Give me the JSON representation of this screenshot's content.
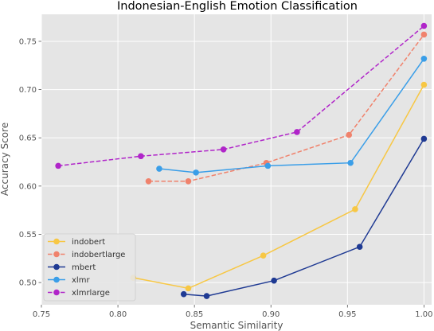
{
  "chart_data": {
    "type": "line",
    "title": "Indonesian-English Emotion Classification",
    "xlabel": "Semantic Similarity",
    "ylabel": "Accuracy Score",
    "xlim": [
      0.75,
      1.005
    ],
    "ylim": [
      0.477,
      0.778
    ],
    "xticks": [
      "0.75",
      "0.80",
      "0.85",
      "0.90",
      "0.95",
      "1.00"
    ],
    "yticks": [
      "0.50",
      "0.55",
      "0.60",
      "0.65",
      "0.70",
      "0.75"
    ],
    "grid": true,
    "background": "#e5e5e5",
    "legend_position": "lower-left",
    "series": [
      {
        "name": "indobert",
        "color": "#f7c744",
        "linestyle": "solid",
        "points": [
          [
            0.81,
            0.505
          ],
          [
            0.846,
            0.494
          ],
          [
            0.895,
            0.528
          ],
          [
            0.955,
            0.576
          ],
          [
            1.0,
            0.705
          ]
        ]
      },
      {
        "name": "indobertlarge",
        "color": "#f0826c",
        "linestyle": "dashed",
        "points": [
          [
            0.82,
            0.605
          ],
          [
            0.846,
            0.605
          ],
          [
            0.897,
            0.624
          ],
          [
            0.951,
            0.653
          ],
          [
            1.0,
            0.757
          ]
        ]
      },
      {
        "name": "mbert",
        "color": "#1f3a93",
        "linestyle": "solid",
        "points": [
          [
            0.843,
            0.488
          ],
          [
            0.858,
            0.486
          ],
          [
            0.902,
            0.502
          ],
          [
            0.958,
            0.537
          ],
          [
            1.0,
            0.649
          ]
        ]
      },
      {
        "name": "xlmr",
        "color": "#3a9ee8",
        "linestyle": "solid",
        "points": [
          [
            0.827,
            0.618
          ],
          [
            0.851,
            0.614
          ],
          [
            0.898,
            0.621
          ],
          [
            0.952,
            0.624
          ],
          [
            1.0,
            0.732
          ]
        ]
      },
      {
        "name": "xlmrlarge",
        "color": "#b025c9",
        "linestyle": "dashed",
        "points": [
          [
            0.761,
            0.621
          ],
          [
            0.815,
            0.631
          ],
          [
            0.869,
            0.638
          ],
          [
            0.917,
            0.656
          ],
          [
            1.0,
            0.766
          ]
        ]
      }
    ]
  }
}
